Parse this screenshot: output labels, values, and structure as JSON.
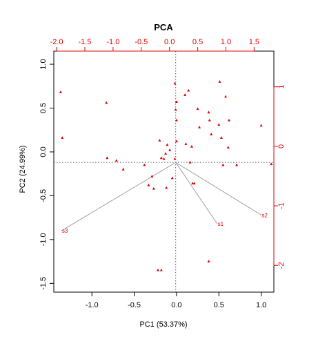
{
  "chart_data": {
    "type": "scatter",
    "title": "PCA",
    "xlabel": "PC1 (53.37%)",
    "ylabel": "PC2 (24.99%)",
    "xlim": [
      -1.45,
      1.15
    ],
    "ylim": [
      -1.6,
      1.15
    ],
    "x_ticks": [
      "-1.0",
      "-0.5",
      "0.0",
      "0.5",
      "1.0"
    ],
    "y_ticks": [
      "-1.5",
      "-1.0",
      "-0.5",
      "0.0",
      "0.5",
      "1.0"
    ],
    "top_axis": {
      "lim": [
        -2.05,
        1.85
      ],
      "ticks": [
        "-2.0",
        "-1.5",
        "-1.0",
        "-0.5",
        "0.0",
        "0.5",
        "1.0",
        "1.5"
      ]
    },
    "right_axis": {
      "lim": [
        -2.45,
        1.6
      ],
      "ticks": [
        "1",
        "0",
        "-1",
        "-2"
      ]
    },
    "reference_lines": {
      "x": -0.01,
      "y": -0.12
    },
    "colors": {
      "points": "#e00000",
      "secondary_axes": "#e00000",
      "vectors": "#a0a0a0",
      "reflines": "#555555"
    },
    "points": [
      {
        "x": -1.37,
        "y": 0.68
      },
      {
        "x": -1.35,
        "y": 0.16
      },
      {
        "x": -0.83,
        "y": 0.56
      },
      {
        "x": -0.82,
        "y": -0.07
      },
      {
        "x": -0.71,
        "y": -0.1
      },
      {
        "x": -0.63,
        "y": -0.2
      },
      {
        "x": -0.38,
        "y": -0.15
      },
      {
        "x": -0.33,
        "y": -0.38
      },
      {
        "x": -0.29,
        "y": -0.28
      },
      {
        "x": -0.27,
        "y": -0.42
      },
      {
        "x": -0.2,
        "y": 0.13
      },
      {
        "x": -0.18,
        "y": -0.07
      },
      {
        "x": -0.22,
        "y": -1.35
      },
      {
        "x": -0.18,
        "y": -1.35
      },
      {
        "x": -0.15,
        "y": -0.08
      },
      {
        "x": -0.13,
        "y": -0.02
      },
      {
        "x": -0.12,
        "y": -0.41
      },
      {
        "x": -0.11,
        "y": 0.08
      },
      {
        "x": -0.08,
        "y": 0.02
      },
      {
        "x": -0.05,
        "y": -0.3
      },
      {
        "x": -0.02,
        "y": -0.08
      },
      {
        "x": -0.02,
        "y": 0.78
      },
      {
        "x": -0.01,
        "y": 0.48
      },
      {
        "x": 0.0,
        "y": 0.57
      },
      {
        "x": 0.0,
        "y": 0.36
      },
      {
        "x": 0.0,
        "y": 0.12
      },
      {
        "x": 0.1,
        "y": 0.65
      },
      {
        "x": 0.11,
        "y": 0.09
      },
      {
        "x": 0.14,
        "y": 0.7
      },
      {
        "x": 0.16,
        "y": -0.12
      },
      {
        "x": 0.18,
        "y": 0.06
      },
      {
        "x": 0.19,
        "y": -0.36
      },
      {
        "x": 0.21,
        "y": -0.36
      },
      {
        "x": 0.25,
        "y": 0.49
      },
      {
        "x": 0.27,
        "y": 0.28
      },
      {
        "x": 0.38,
        "y": 0.45
      },
      {
        "x": 0.39,
        "y": 0.36
      },
      {
        "x": 0.38,
        "y": -1.25
      },
      {
        "x": 0.41,
        "y": 0.2
      },
      {
        "x": 0.51,
        "y": 0.8
      },
      {
        "x": 0.5,
        "y": 0.31
      },
      {
        "x": 0.53,
        "y": 0.16
      },
      {
        "x": 0.55,
        "y": -0.15
      },
      {
        "x": 0.58,
        "y": 0.63
      },
      {
        "x": 0.61,
        "y": 0.05
      },
      {
        "x": 0.62,
        "y": 0.36
      },
      {
        "x": 0.71,
        "y": -0.15
      },
      {
        "x": 1.0,
        "y": 0.3
      },
      {
        "x": 1.12,
        "y": -0.14
      }
    ],
    "vectors": [
      {
        "name": "s1",
        "x": 0.48,
        "y": -0.82
      },
      {
        "name": "s2",
        "x": 1.0,
        "y": -0.72
      },
      {
        "name": "s3",
        "x": -1.36,
        "y": -0.9
      }
    ]
  }
}
